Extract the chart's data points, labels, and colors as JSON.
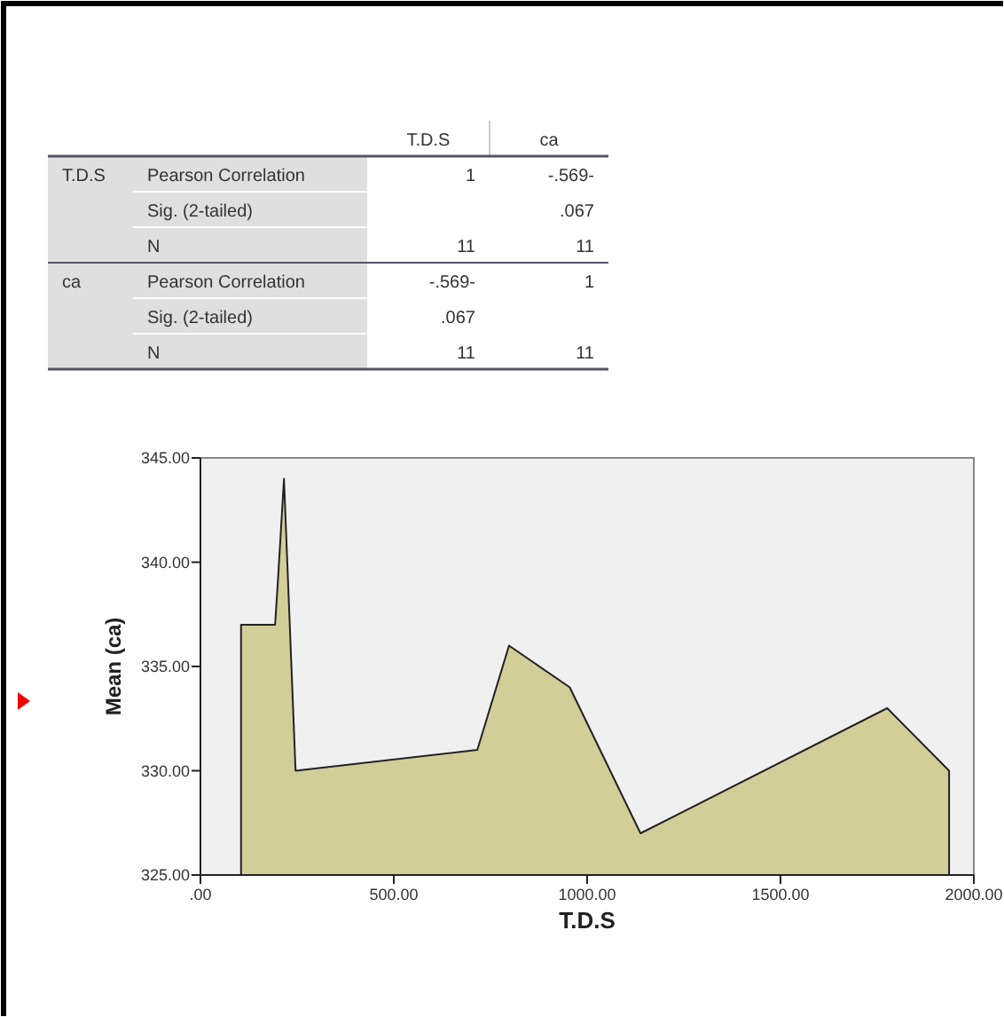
{
  "chart_data": [
    {
      "type": "other",
      "categories": [
        null,
        null,
        "T.D.S",
        "ca"
      ],
      "cell_labels": [
        [
          "T.D.S",
          "Pearson Correlation",
          "1",
          "-.569-"
        ],
        [
          null,
          "Sig. (2-tailed)",
          null,
          ".067"
        ],
        [
          null,
          "N",
          "11",
          "11"
        ],
        [
          "ca",
          "Pearson Correlation",
          "-.569-",
          "1"
        ],
        [
          null,
          "Sig. (2-tailed)",
          ".067",
          null
        ],
        [
          null,
          "N",
          "11",
          "11"
        ]
      ]
    },
    {
      "type": "area",
      "xlabel": "T.D.S",
      "ylabel": "Mean (ca)",
      "x": [
        105,
        193,
        200,
        216,
        246,
        716,
        798,
        955,
        1138,
        1776,
        1936
      ],
      "series": [
        {
          "color": "#d3cd98",
          "values": [
            337,
            337,
            339,
            344,
            330,
            331,
            336,
            334,
            327,
            333,
            330
          ]
        }
      ],
      "xlim": [
        0,
        2000
      ],
      "xticks": [
        {
          "value": 0,
          "label": ".00"
        },
        {
          "value": 500,
          "label": "500.00"
        },
        {
          "value": 1000,
          "label": "1000.00"
        },
        {
          "value": 1500,
          "label": "1500.00"
        },
        {
          "value": 2000,
          "label": "2000.00"
        }
      ],
      "ylim": [
        325,
        345
      ],
      "yticks": [
        {
          "value": 325,
          "label": "325.00"
        },
        {
          "value": 330,
          "label": "330.00"
        },
        {
          "value": 335,
          "label": "335.00"
        },
        {
          "value": 340,
          "label": "340.00"
        },
        {
          "value": 345,
          "label": "345.00"
        }
      ],
      "grid": false
    }
  ]
}
